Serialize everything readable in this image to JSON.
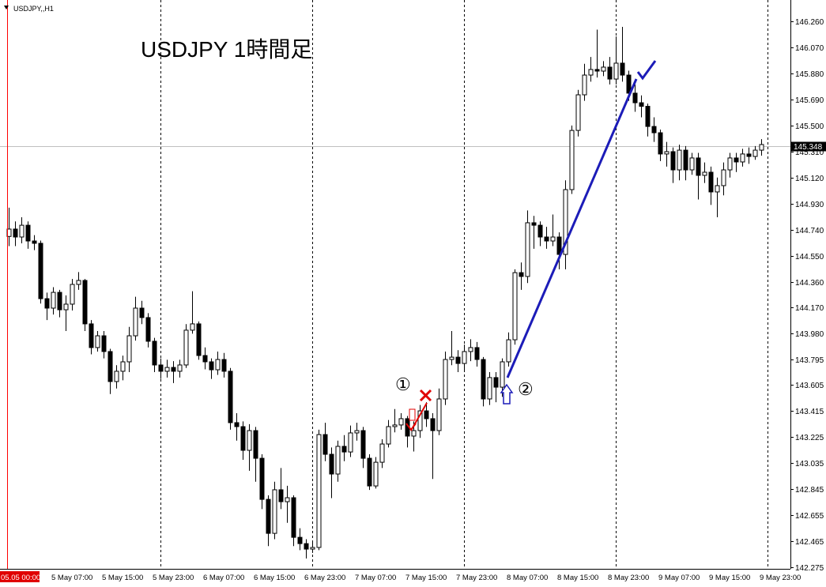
{
  "chart_data": {
    "type": "candlestick",
    "symbol": "USDJPY,,H1",
    "title": "USDJPY 1時間足",
    "annotation_labels": [
      "①",
      "②"
    ],
    "last_price": 145.348,
    "ylim": [
      142.264,
      146.416
    ],
    "yticks": [
      {
        "value": 146.26,
        "label": "146.260"
      },
      {
        "value": 146.07,
        "label": "146.070"
      },
      {
        "value": 145.88,
        "label": "145.880"
      },
      {
        "value": 145.69,
        "label": "145.690"
      },
      {
        "value": 145.5,
        "label": "145.500"
      },
      {
        "value": 145.31,
        "label": "145.310"
      },
      {
        "value": 145.12,
        "label": "145.120"
      },
      {
        "value": 144.93,
        "label": "144.930"
      },
      {
        "value": 144.74,
        "label": "144.740"
      },
      {
        "value": 144.55,
        "label": "144.550"
      },
      {
        "value": 144.36,
        "label": "144.360"
      },
      {
        "value": 144.17,
        "label": "144.170"
      },
      {
        "value": 143.98,
        "label": "143.980"
      },
      143.795,
      143.605,
      143.415,
      143.225,
      143.035,
      142.845,
      142.655,
      142.465,
      142.275
    ],
    "categories": [
      "05.05 00:00",
      null,
      null,
      null,
      null,
      null,
      null,
      "5 May 07:00",
      null,
      null,
      null,
      null,
      null,
      null,
      null,
      "5 May 15:00",
      null,
      null,
      null,
      null,
      null,
      null,
      null,
      "5 May 23:00",
      null,
      null,
      null,
      null,
      null,
      null,
      null,
      "6 May 07:00",
      null,
      null,
      null,
      null,
      null,
      null,
      null,
      "6 May 15:00",
      null,
      null,
      null,
      null,
      null,
      null,
      null,
      "6 May 23:00",
      null,
      null,
      null,
      null,
      null,
      null,
      null,
      "7 May 07:00",
      null,
      null,
      null,
      null,
      null,
      null,
      null,
      "7 May 15:00",
      null,
      null,
      null,
      null,
      null,
      null,
      null,
      "7 May 23:00",
      null,
      null,
      null,
      null,
      null,
      null,
      null,
      "8 May 07:00",
      null,
      null,
      null,
      null,
      null,
      null,
      null,
      "8 May 15:00",
      null,
      null,
      null,
      null,
      null,
      null,
      null,
      "8 May 23:00",
      null,
      null,
      null,
      null,
      null,
      null,
      null,
      "9 May 07:00",
      null,
      null,
      null,
      null,
      null,
      null,
      null,
      "9 May 15:00",
      null,
      null,
      null,
      null,
      null,
      null,
      null,
      "9 May 23:00"
    ],
    "open": [
      144.69,
      144.744,
      144.686,
      144.772,
      144.657,
      144.64,
      144.236,
      144.167,
      144.282,
      144.155,
      144.196,
      144.34,
      144.369,
      144.052,
      143.879,
      143.965,
      143.85,
      143.631,
      143.706,
      143.775,
      143.965,
      144.167,
      144.098,
      143.925,
      143.752,
      143.706,
      143.734,
      143.706,
      143.752,
      144.006,
      144.052,
      143.821,
      143.775,
      143.717,
      143.792,
      143.706,
      143.331,
      143.302,
      143.129,
      143.273,
      143.071,
      142.771,
      142.523,
      142.841,
      142.754,
      142.783,
      142.494,
      142.448,
      142.408,
      142.42,
      143.244,
      143.1,
      142.956,
      143.158,
      143.117,
      143.256,
      143.273,
      143.071,
      142.869,
      143.042,
      143.175,
      143.302,
      143.314,
      143.36,
      143.233,
      143.273,
      143.417,
      143.36,
      143.273,
      143.504,
      143.792,
      143.809,
      143.763,
      143.85,
      143.879,
      143.792,
      143.504,
      143.66,
      143.59,
      143.775,
      143.936,
      144.426,
      144.398,
      144.79,
      144.772,
      144.686,
      144.657,
      144.686,
      144.559,
      145.032,
      145.464,
      145.724,
      145.868,
      145.909,
      145.897,
      145.926,
      145.839,
      145.955,
      145.868,
      145.736,
      145.666,
      145.64,
      145.493,
      145.447,
      145.292,
      145.309,
      145.176,
      145.32,
      145.176,
      145.263,
      145.136,
      145.159,
      145.015,
      145.061,
      145.176,
      145.263,
      145.234,
      145.292,
      145.274,
      145.32
    ],
    "high": [
      144.9,
      144.8,
      144.83,
      144.8,
      144.7,
      144.66,
      144.28,
      144.32,
      144.3,
      144.26,
      144.38,
      144.43,
      144.38,
      144.08,
      144.0,
      144.0,
      143.87,
      143.75,
      143.82,
      144.03,
      144.25,
      144.22,
      144.13,
      143.95,
      143.8,
      143.79,
      143.78,
      143.79,
      144.05,
      144.29,
      144.07,
      143.88,
      143.8,
      143.85,
      143.84,
      143.73,
      143.4,
      143.34,
      143.32,
      143.3,
      143.1,
      142.8,
      142.9,
      143.0,
      142.87,
      142.8,
      142.56,
      142.48,
      142.47,
      143.28,
      143.33,
      143.15,
      143.2,
      143.24,
      143.31,
      143.33,
      143.3,
      143.1,
      143.08,
      143.21,
      143.35,
      143.43,
      143.4,
      143.38,
      143.34,
      143.46,
      143.48,
      143.4,
      143.58,
      143.85,
      144.0,
      143.86,
      143.9,
      143.94,
      143.92,
      143.81,
      143.7,
      143.7,
      143.8,
      143.99,
      144.45,
      144.5,
      144.88,
      144.84,
      144.8,
      144.76,
      144.85,
      144.72,
      145.1,
      145.5,
      145.76,
      145.95,
      146.0,
      146.2,
      145.97,
      146.0,
      146.15,
      146.22,
      145.9,
      145.8,
      145.72,
      145.66,
      145.56,
      145.47,
      145.38,
      145.34,
      145.36,
      145.35,
      145.3,
      145.3,
      145.23,
      145.2,
      145.12,
      145.23,
      145.3,
      145.3,
      145.33,
      145.34,
      145.35,
      145.4
    ],
    "low": [
      144.62,
      144.62,
      144.64,
      144.6,
      144.59,
      144.2,
      144.08,
      144.12,
      144.1,
      144.0,
      144.15,
      144.3,
      144.0,
      143.83,
      143.85,
      143.8,
      143.54,
      143.58,
      143.64,
      143.7,
      143.93,
      144.05,
      143.88,
      143.7,
      143.65,
      143.66,
      143.62,
      143.66,
      143.73,
      143.98,
      143.79,
      143.72,
      143.65,
      143.68,
      143.66,
      143.28,
      143.2,
      143.06,
      142.98,
      142.9,
      142.7,
      142.43,
      142.48,
      142.7,
      142.6,
      142.43,
      142.4,
      142.34,
      142.38,
      142.4,
      143.05,
      142.78,
      142.9,
      143.05,
      143.08,
      143.2,
      143.0,
      142.84,
      142.85,
      143.0,
      143.15,
      143.26,
      143.28,
      143.15,
      143.12,
      143.22,
      143.3,
      142.92,
      143.24,
      143.46,
      143.75,
      143.7,
      143.7,
      143.78,
      143.74,
      143.45,
      143.46,
      143.48,
      143.52,
      143.74,
      143.9,
      144.3,
      144.35,
      144.6,
      144.62,
      144.6,
      144.62,
      144.45,
      144.45,
      145.0,
      145.42,
      145.68,
      145.82,
      145.85,
      145.86,
      145.8,
      145.8,
      145.82,
      145.68,
      145.6,
      145.56,
      145.42,
      145.38,
      145.24,
      145.2,
      145.08,
      145.1,
      145.1,
      145.14,
      144.96,
      145.08,
      144.92,
      144.83,
      144.99,
      145.12,
      145.16,
      145.2,
      145.22,
      145.25,
      145.28
    ],
    "close": [
      144.744,
      144.686,
      144.772,
      144.657,
      144.64,
      144.236,
      144.167,
      144.282,
      144.155,
      144.196,
      144.34,
      144.369,
      144.052,
      143.879,
      143.965,
      143.85,
      143.631,
      143.706,
      143.775,
      143.965,
      144.167,
      144.098,
      143.925,
      143.752,
      143.706,
      143.734,
      143.706,
      143.752,
      144.006,
      144.052,
      143.821,
      143.775,
      143.717,
      143.792,
      143.706,
      143.331,
      143.302,
      143.129,
      143.273,
      143.071,
      142.771,
      142.523,
      142.841,
      142.754,
      142.783,
      142.494,
      142.448,
      142.408,
      142.42,
      143.244,
      143.1,
      142.956,
      143.158,
      143.117,
      143.256,
      143.273,
      143.071,
      142.869,
      143.042,
      143.175,
      143.302,
      143.314,
      143.36,
      143.233,
      143.273,
      143.417,
      143.36,
      143.273,
      143.504,
      143.792,
      143.809,
      143.763,
      143.85,
      143.879,
      143.792,
      143.504,
      143.66,
      143.59,
      143.775,
      143.936,
      144.426,
      144.398,
      144.79,
      144.772,
      144.686,
      144.657,
      144.686,
      144.559,
      145.032,
      145.464,
      145.724,
      145.868,
      145.909,
      145.897,
      145.926,
      145.839,
      145.955,
      145.868,
      145.736,
      145.666,
      145.64,
      145.493,
      145.447,
      145.292,
      145.309,
      145.176,
      145.32,
      145.176,
      145.263,
      145.136,
      145.159,
      145.015,
      145.061,
      145.176,
      145.263,
      145.234,
      145.292,
      145.274,
      145.32,
      145.361
    ]
  }
}
